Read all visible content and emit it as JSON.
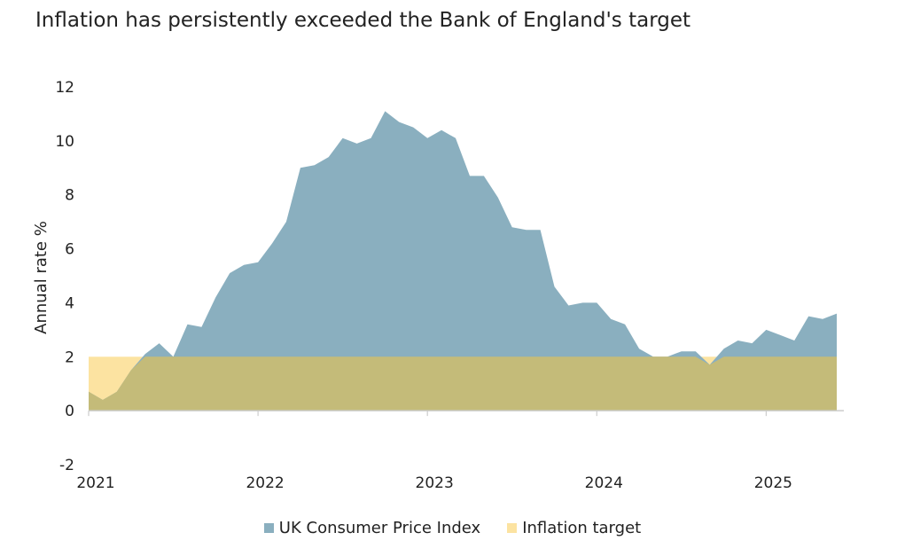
{
  "colors": {
    "cpi": "#8aafbf",
    "target": "#fce3a1",
    "overlap": "#c4bb79",
    "axis": "#cccccc"
  },
  "chart_data": {
    "type": "area",
    "title": "Inflation has persistently exceeded the Bank of England's target",
    "ylabel": "Annual rate %",
    "xlabel": "",
    "ylim": [
      -2,
      12
    ],
    "yticks": [
      "-2",
      "0",
      "2",
      "4",
      "6",
      "8",
      "10",
      "12"
    ],
    "xticks": [
      "2021",
      "2022",
      "2023",
      "2024",
      "2025"
    ],
    "xlim": [
      "2021-01",
      "2025-06"
    ],
    "legend_position": "bottom",
    "grid": false,
    "series": [
      {
        "name": "UK Consumer Price Index",
        "x": [
          "2021-01",
          "2021-02",
          "2021-03",
          "2021-04",
          "2021-05",
          "2021-06",
          "2021-07",
          "2021-08",
          "2021-09",
          "2021-10",
          "2021-11",
          "2021-12",
          "2022-01",
          "2022-02",
          "2022-03",
          "2022-04",
          "2022-05",
          "2022-06",
          "2022-07",
          "2022-08",
          "2022-09",
          "2022-10",
          "2022-11",
          "2022-12",
          "2023-01",
          "2023-02",
          "2023-03",
          "2023-04",
          "2023-05",
          "2023-06",
          "2023-07",
          "2023-08",
          "2023-09",
          "2023-10",
          "2023-11",
          "2023-12",
          "2024-01",
          "2024-02",
          "2024-03",
          "2024-04",
          "2024-05",
          "2024-06",
          "2024-07",
          "2024-08",
          "2024-09",
          "2024-10",
          "2024-11",
          "2024-12",
          "2025-01",
          "2025-02",
          "2025-03",
          "2025-04",
          "2025-05",
          "2025-06"
        ],
        "values": [
          0.7,
          0.4,
          0.7,
          1.5,
          2.1,
          2.5,
          2.0,
          3.2,
          3.1,
          4.2,
          5.1,
          5.4,
          5.5,
          6.2,
          7.0,
          9.0,
          9.1,
          9.4,
          10.1,
          9.9,
          10.1,
          11.1,
          10.7,
          10.5,
          10.1,
          10.4,
          10.1,
          8.7,
          8.7,
          7.9,
          6.8,
          6.7,
          6.7,
          4.6,
          3.9,
          4.0,
          4.0,
          3.4,
          3.2,
          2.3,
          2.0,
          2.0,
          2.2,
          2.2,
          1.7,
          2.3,
          2.6,
          2.5,
          3.0,
          2.8,
          2.6,
          3.5,
          3.4,
          3.6
        ]
      },
      {
        "name": "Inflation target",
        "x": [
          "2021-01",
          "2025-06"
        ],
        "values": [
          2.0,
          2.0
        ]
      }
    ]
  }
}
